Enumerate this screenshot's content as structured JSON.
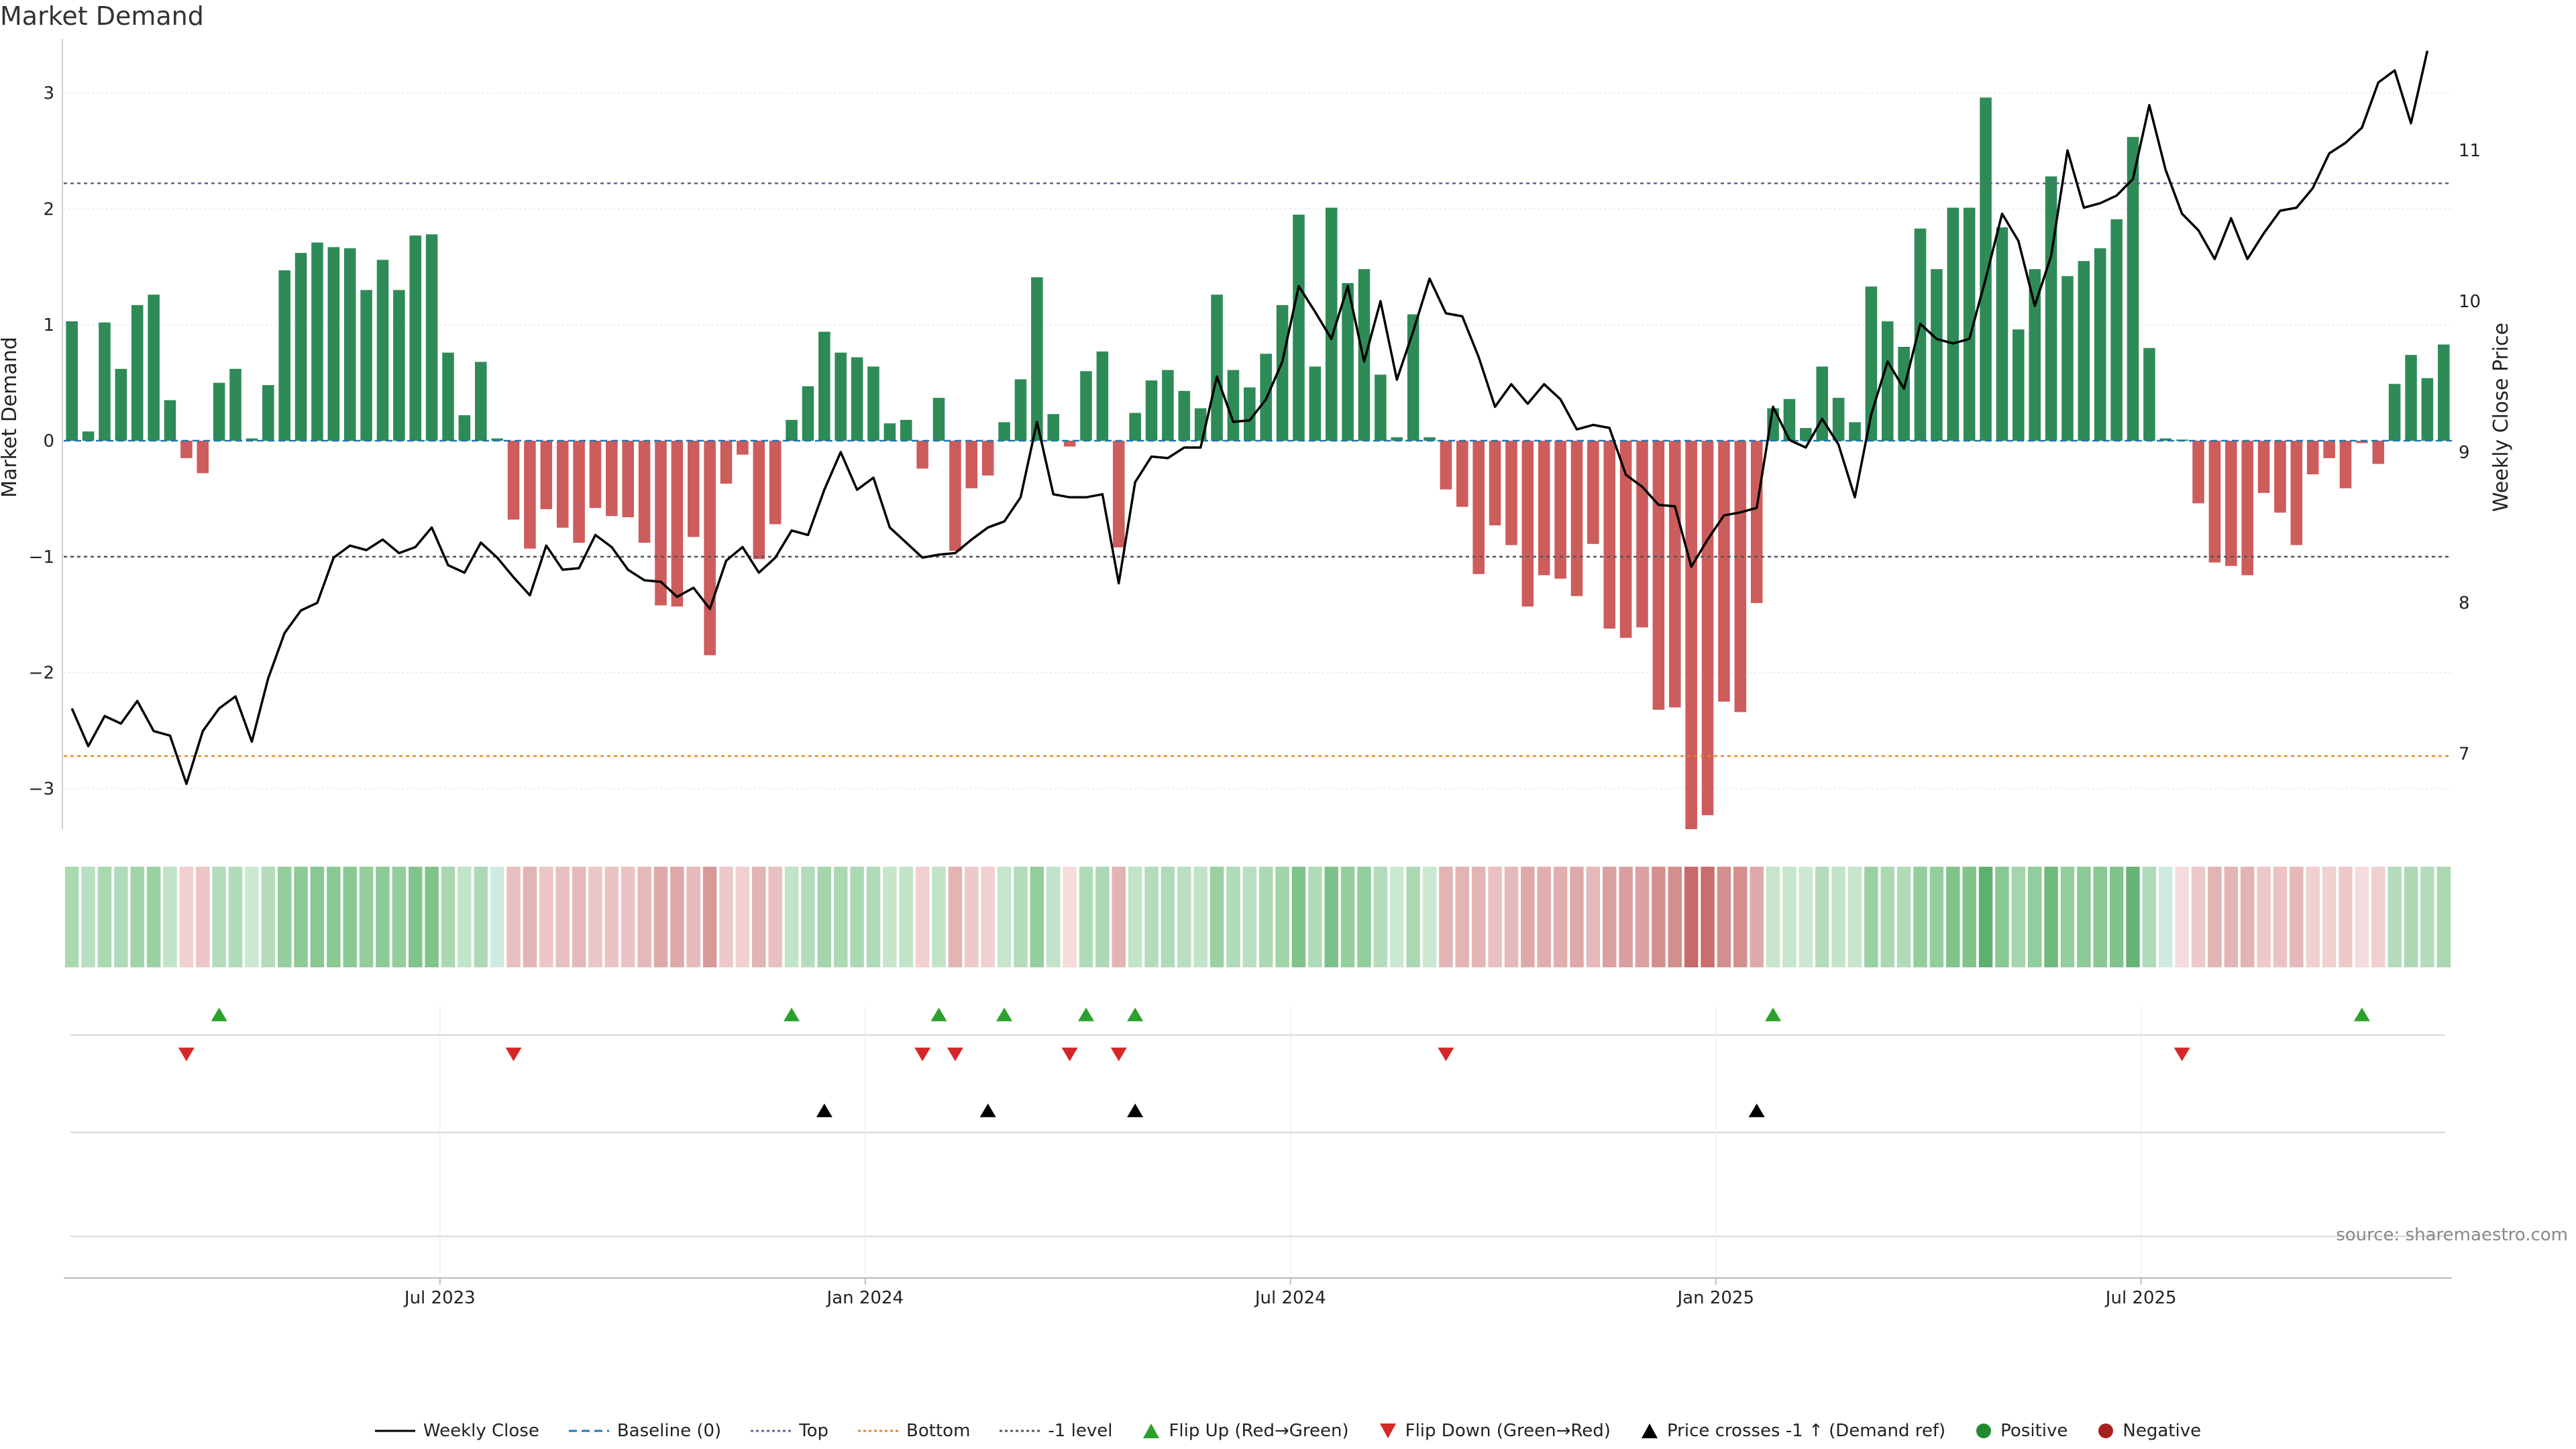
{
  "title": "Market Demand",
  "source": "source: sharemaestro.com",
  "chart_data": {
    "type": "bar",
    "title": "Market Demand",
    "ylabel": "Market Demand",
    "y2label": "Weekly Close Price",
    "ylim": [
      -3.35,
      3.35
    ],
    "y2lim": [
      6.5,
      11.65
    ],
    "yticks": [
      3,
      2,
      1,
      0,
      -1,
      -2,
      -3
    ],
    "ytick_labels": [
      "3",
      "2",
      "1",
      "0",
      "−1",
      "−2",
      "−3"
    ],
    "y2ticks": [
      7,
      8,
      9,
      10,
      11
    ],
    "y2tick_labels": [
      "7",
      "8",
      "9",
      "10",
      "11"
    ],
    "xticks": [
      22.5,
      48.5,
      74.5,
      100.5,
      126.5
    ],
    "xtick_labels": [
      "Jul 2023",
      "Jan 2024",
      "Jul 2024",
      "Jan 2025",
      "Jul 2025"
    ],
    "reference_lines": {
      "top": 2.22,
      "bottom": -2.72,
      "minus_one": -1.0,
      "baseline": 0
    },
    "demand": [
      1.03,
      0.08,
      1.02,
      0.62,
      1.17,
      1.26,
      0.35,
      -0.15,
      -0.28,
      0.5,
      0.62,
      0.02,
      0.48,
      1.47,
      1.62,
      1.71,
      1.67,
      1.66,
      1.3,
      1.56,
      1.3,
      1.77,
      1.78,
      0.76,
      0.22,
      0.68,
      0.02,
      -0.68,
      -0.93,
      -0.59,
      -0.75,
      -0.88,
      -0.58,
      -0.65,
      -0.66,
      -0.88,
      -1.42,
      -1.43,
      -0.83,
      -1.85,
      -0.37,
      -0.12,
      -1.02,
      -0.72,
      0.18,
      0.47,
      0.94,
      0.76,
      0.72,
      0.64,
      0.15,
      0.18,
      -0.24,
      0.37,
      -0.95,
      -0.41,
      -0.3,
      0.16,
      0.53,
      1.41,
      0.23,
      -0.05,
      0.6,
      0.77,
      -0.92,
      0.24,
      0.52,
      0.61,
      0.43,
      0.28,
      1.26,
      0.61,
      0.46,
      0.75,
      1.17,
      1.95,
      0.64,
      2.01,
      1.36,
      1.48,
      0.57,
      0.03,
      1.09,
      0.03,
      -0.42,
      -0.57,
      -1.15,
      -0.73,
      -0.9,
      -1.43,
      -1.16,
      -1.19,
      -1.34,
      -0.89,
      -1.62,
      -1.7,
      -1.61,
      -2.32,
      -2.3,
      -3.35,
      -3.23,
      -2.25,
      -2.34,
      -1.4,
      0.28,
      0.36,
      0.11,
      0.64,
      0.37,
      0.16,
      1.33,
      1.03,
      0.81,
      1.83,
      1.48,
      2.01,
      2.01,
      2.96,
      1.84,
      0.96,
      1.48,
      2.28,
      1.42,
      1.55,
      1.66,
      1.91,
      2.62,
      0.8,
      0.02,
      0.01,
      -0.54,
      -1.05,
      -1.08,
      -1.16,
      -0.45,
      -0.62,
      -0.9,
      -0.29,
      -0.15,
      -0.41,
      -0.02,
      -0.2,
      0.49,
      0.74,
      0.54,
      0.83
    ],
    "weekly_close": [
      7.3,
      7.05,
      7.25,
      7.2,
      7.35,
      7.15,
      7.12,
      6.8,
      7.15,
      7.3,
      7.38,
      7.08,
      7.5,
      7.8,
      7.95,
      8.0,
      8.3,
      8.38,
      8.35,
      8.42,
      8.33,
      8.37,
      8.5,
      8.25,
      8.2,
      8.4,
      8.3,
      8.17,
      8.05,
      8.38,
      8.22,
      8.23,
      8.45,
      8.37,
      8.22,
      8.15,
      8.14,
      8.04,
      8.1,
      7.96,
      8.28,
      8.37,
      8.2,
      8.3,
      8.48,
      8.45,
      8.75,
      9.0,
      8.75,
      8.83,
      8.5,
      8.4,
      8.3,
      8.32,
      8.33,
      8.42,
      8.5,
      8.54,
      8.7,
      9.2,
      8.72,
      8.7,
      8.7,
      8.72,
      8.13,
      8.8,
      8.97,
      8.96,
      9.03,
      9.03,
      9.5,
      9.2,
      9.21,
      9.35,
      9.6,
      10.1,
      9.93,
      9.75,
      10.1,
      9.6,
      10.0,
      9.48,
      9.8,
      10.15,
      9.92,
      9.9,
      9.63,
      9.3,
      9.45,
      9.32,
      9.45,
      9.35,
      9.15,
      9.18,
      9.16,
      8.85,
      8.77,
      8.65,
      8.64,
      8.24,
      8.42,
      8.58,
      8.6,
      8.63,
      9.3,
      9.08,
      9.03,
      9.22,
      9.05,
      8.7,
      9.25,
      9.6,
      9.42,
      9.85,
      9.75,
      9.72,
      9.75,
      10.15,
      10.58,
      10.4,
      9.97,
      10.3,
      11.0,
      10.62,
      10.65,
      10.7,
      10.81,
      11.3,
      10.87,
      10.58,
      10.47,
      10.28,
      10.55,
      10.28,
      10.45,
      10.6,
      10.62,
      10.75,
      10.98,
      11.05,
      11.15,
      11.45,
      11.53,
      11.18,
      11.66
    ],
    "color_strip": [
      "#a9d8b1",
      "#b9dfc0",
      "#a9d8b1",
      "#b0dbb8",
      "#a1d4a9",
      "#9ad1a3",
      "#c1e3c7",
      "#f0d0d0",
      "#ecc5c5",
      "#b4dcbb",
      "#b0dbb8",
      "#cbe8d0",
      "#b4dcbb",
      "#94ce9d",
      "#8ccb96",
      "#88c892",
      "#8ac994",
      "#8ac994",
      "#94ce9d",
      "#8ccb96",
      "#92cd9c",
      "#80c48b",
      "#80c48b",
      "#a9d8b1",
      "#c1e3c7",
      "#acd9b4",
      "#cfeae1",
      "#e8c0c0",
      "#e3b4b4",
      "#ecc5c5",
      "#e8c0c0",
      "#e5b9b9",
      "#ecc5c5",
      "#ebc3c3",
      "#ebc3c3",
      "#e5b9b9",
      "#dfa9a9",
      "#dfa9a9",
      "#e6bbbb",
      "#d89999",
      "#edc9c9",
      "#f0d0d0",
      "#e3b4b4",
      "#e8c0c0",
      "#c1e3c7",
      "#b4dcbb",
      "#a4d5ac",
      "#acd9b4",
      "#acd9b4",
      "#b0dbb8",
      "#c6e5cb",
      "#c1e3c7",
      "#f0d0d0",
      "#c1e3c7",
      "#e3b4b4",
      "#edc9c9",
      "#f0d0d0",
      "#c6e5cb",
      "#b4dcbb",
      "#94ce9d",
      "#c1e3c7",
      "#f4dcdc",
      "#b0dbb8",
      "#acd9b4",
      "#e3b4b4",
      "#c1e3c7",
      "#b4dcbb",
      "#b0dbb8",
      "#b9dfc0",
      "#c1e3c7",
      "#9ad1a3",
      "#b0dbb8",
      "#b9dfc0",
      "#acd9b4",
      "#a1d4a9",
      "#80c48b",
      "#b0dbb8",
      "#7cc288",
      "#94ce9d",
      "#92cd9c",
      "#b4dcbb",
      "#cbe8d0",
      "#a9d8b1",
      "#cbe8d0",
      "#e3b4b4",
      "#e3b4b4",
      "#e3b4b4",
      "#e8c0c0",
      "#e5b9b9",
      "#dfa9a9",
      "#e1aeae",
      "#e1aeae",
      "#dfa9a9",
      "#e5b9b9",
      "#dba1a1",
      "#da9e9e",
      "#dba1a1",
      "#d38e8e",
      "#d38e8e",
      "#c66a6a",
      "#c86e6e",
      "#d38e8e",
      "#d38e8e",
      "#dfa9a9",
      "#c6e5cb",
      "#c6e5cb",
      "#cbe8d0",
      "#b4dcbb",
      "#c1e3c7",
      "#c6e5cb",
      "#9ad1a3",
      "#a9d8b1",
      "#b0dbb8",
      "#94ce9d",
      "#92cd9c",
      "#80c48b",
      "#80c48b",
      "#5eb070",
      "#88c892",
      "#a4d5ac",
      "#92cd9c",
      "#6fba7c",
      "#94ce9d",
      "#8ccb96",
      "#88c892",
      "#80c48b",
      "#66b477",
      "#b0dbb8",
      "#cfeae1",
      "#f4dcdc",
      "#edc9c9",
      "#e3b4b4",
      "#e3b4b4",
      "#e3b4b4",
      "#edc9c9",
      "#ebc3c3",
      "#e5b9b9",
      "#f0d0d0",
      "#f0d0d0",
      "#edc9c9",
      "#f4dcdc",
      "#f0d0d0",
      "#b4dcbb",
      "#acd9b4",
      "#b4dcbb",
      "#a9d8b1"
    ],
    "events": {
      "flip_up_weeks": [
        9,
        44,
        53,
        57,
        62,
        65,
        104,
        140
      ],
      "flip_down_weeks": [
        7,
        27,
        52,
        54,
        61,
        64,
        84,
        129
      ],
      "price_crosses_weeks": [
        46,
        56,
        65,
        103
      ]
    },
    "colors": {
      "positive_bar": "#2e8b57",
      "negative_bar": "#cd5c5c",
      "price_line": "#000000",
      "top_line": "#6b5b95",
      "bottom_line": "#e08a1e",
      "minus_one_line": "#555555",
      "baseline": "#1f77b4",
      "flip_up": "#2ca02c",
      "flip_down": "#d62728",
      "cross": "#000000",
      "positive_dot": "#1e8b2c",
      "negative_dot": "#a82020"
    }
  },
  "legend": [
    {
      "icon": "line-solid-icon",
      "label": "Weekly Close",
      "color": "#000000"
    },
    {
      "icon": "line-dashed-icon",
      "label": "Baseline (0)",
      "color": "#1f77b4"
    },
    {
      "icon": "line-dotted-icon",
      "label": "Top",
      "color": "#6b5b95"
    },
    {
      "icon": "line-dotted-icon",
      "label": "Bottom",
      "color": "#e08a1e"
    },
    {
      "icon": "line-dotted-icon",
      "label": "-1 level",
      "color": "#555555"
    },
    {
      "icon": "triangle-up-icon",
      "label": "Flip Up (Red→Green)",
      "color": "#2ca02c"
    },
    {
      "icon": "triangle-down-icon",
      "label": "Flip Down (Green→Red)",
      "color": "#d62728"
    },
    {
      "icon": "triangle-up-icon",
      "label": "Price crosses -1 ↑ (Demand ref)",
      "color": "#000000"
    },
    {
      "icon": "circle-icon",
      "label": "Positive",
      "color": "#1e8b2c"
    },
    {
      "icon": "circle-icon",
      "label": "Negative",
      "color": "#a82020"
    }
  ]
}
